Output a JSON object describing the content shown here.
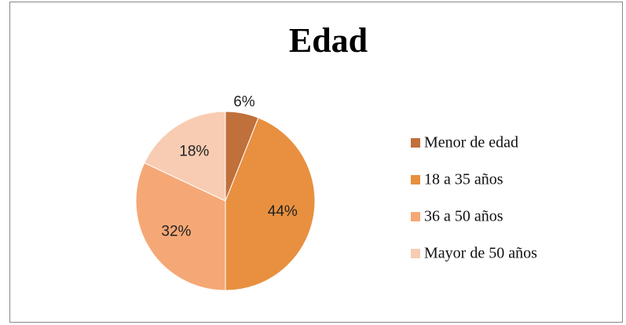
{
  "chart_data": {
    "type": "pie",
    "title": "Edad",
    "categories": [
      "Menor de edad",
      "18 a 35 años",
      "36 a 50 años",
      "Mayor de 50 años"
    ],
    "values": [
      6,
      44,
      32,
      18
    ],
    "value_labels": [
      "6%",
      "44%",
      "32%",
      "18%"
    ],
    "colors": [
      "#c0703a",
      "#e8903f",
      "#f5a876",
      "#f8ccb2"
    ],
    "legend": "right"
  }
}
